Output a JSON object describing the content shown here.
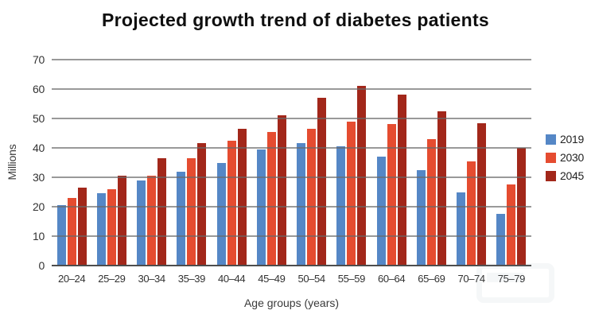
{
  "chart_data": {
    "type": "bar",
    "title": "Projected growth trend of diabetes patients",
    "xlabel": "Age groups (years)",
    "ylabel": "Millions",
    "ylim": [
      0,
      70
    ],
    "ytick_step": 10,
    "grid": true,
    "legend_position": "right",
    "categories": [
      "20–24",
      "25–29",
      "30–34",
      "35–39",
      "40–44",
      "45–49",
      "50–54",
      "55–59",
      "60–64",
      "65–69",
      "70–74",
      "75–79"
    ],
    "series": [
      {
        "name": "2019",
        "color": "#5587c6",
        "values": [
          20.5,
          24.5,
          29,
          32,
          35,
          39.5,
          41.5,
          40.5,
          37,
          32.5,
          25,
          17.5
        ]
      },
      {
        "name": "2030",
        "color": "#e54c30",
        "values": [
          23,
          26,
          30.5,
          36.5,
          42.5,
          45.5,
          46.5,
          49,
          48,
          43,
          35.5,
          27.5
        ]
      },
      {
        "name": "2045",
        "color": "#a2271a",
        "values": [
          26.5,
          30.5,
          36.5,
          41.5,
          46.5,
          51,
          57,
          61,
          58,
          52.5,
          48.5,
          40
        ]
      }
    ],
    "colors": {
      "grid": "#696969",
      "axis_line": "#4d4d4d",
      "title_text": "#0f0f0f",
      "tick_text": "#333333"
    }
  }
}
